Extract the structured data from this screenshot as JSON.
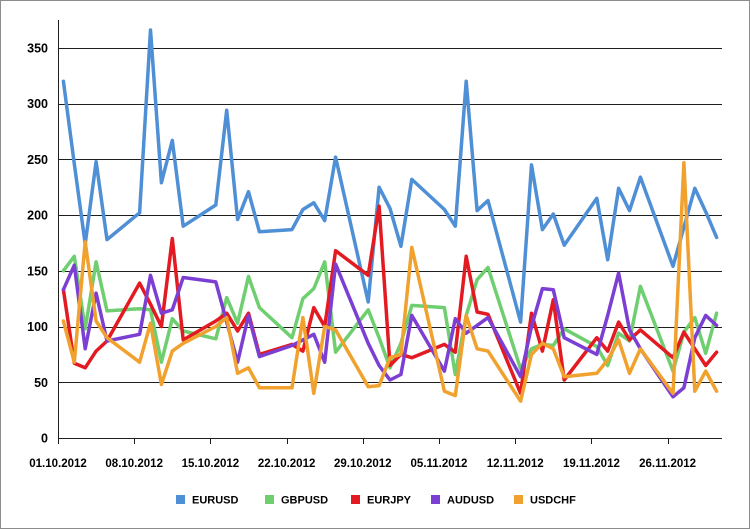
{
  "chart_data": {
    "type": "line",
    "x": [
      0,
      1,
      2,
      3,
      4,
      7,
      8,
      9,
      10,
      11,
      14,
      15,
      16,
      17,
      18,
      21,
      22,
      23,
      24,
      25,
      28,
      29,
      30,
      31,
      32,
      35,
      36,
      37,
      38,
      39,
      42,
      43,
      44,
      45,
      46,
      49,
      50,
      51,
      52,
      53,
      56,
      57,
      58,
      59,
      60
    ],
    "xlim": [
      0,
      61
    ],
    "xticks": [
      {
        "label": "01.10.2012",
        "day": 0
      },
      {
        "label": "08.10.2012",
        "day": 7
      },
      {
        "label": "15.10.2012",
        "day": 14
      },
      {
        "label": "22.10.2012",
        "day": 21
      },
      {
        "label": "29.10.2012",
        "day": 28
      },
      {
        "label": "05.11.2012",
        "day": 35
      },
      {
        "label": "12.11.2012",
        "day": 42
      },
      {
        "label": "19.11.2012",
        "day": 49
      },
      {
        "label": "26.11.2012",
        "day": 56
      }
    ],
    "ylim": [
      0,
      375
    ],
    "yticks": [
      0,
      50,
      100,
      150,
      200,
      250,
      300,
      350
    ],
    "grid": true,
    "legend": "bottom",
    "series": [
      {
        "name": "EURUSD",
        "color": "#4f8fd6",
        "values": [
          320,
          246,
          174,
          248,
          178,
          202,
          366,
          229,
          267,
          190,
          209,
          294,
          196,
          221,
          185,
          187,
          205,
          211,
          195,
          252,
          122,
          225,
          206,
          172,
          232,
          205,
          190,
          320,
          204,
          213,
          104,
          245,
          187,
          201,
          173,
          215,
          160,
          224,
          204,
          234,
          154,
          189,
          224,
          203,
          180
        ]
      },
      {
        "name": "GBPUSD",
        "color": "#6fcf70",
        "values": [
          150,
          163,
          98,
          158,
          114,
          116,
          115,
          68,
          107,
          96,
          89,
          126,
          103,
          145,
          117,
          90,
          125,
          134,
          158,
          77,
          115,
          90,
          63,
          85,
          119,
          117,
          57,
          110,
          142,
          153,
          62,
          80,
          84,
          83,
          98,
          82,
          65,
          94,
          87,
          136,
          60,
          95,
          108,
          76,
          112
        ]
      },
      {
        "name": "EURJPY",
        "color": "#e31a22",
        "values": [
          133,
          67,
          63,
          78,
          87,
          139,
          120,
          100,
          179,
          88,
          105,
          112,
          96,
          112,
          75,
          84,
          78,
          117,
          100,
          168,
          146,
          208,
          65,
          75,
          72,
          84,
          77,
          163,
          113,
          111,
          40,
          112,
          78,
          124,
          52,
          90,
          78,
          104,
          88,
          97,
          72,
          95,
          80,
          65,
          77
        ]
      },
      {
        "name": "AUDUSD",
        "color": "#7b3fd3",
        "values": [
          133,
          155,
          80,
          130,
          87,
          93,
          146,
          112,
          115,
          144,
          140,
          104,
          68,
          110,
          73,
          83,
          88,
          93,
          68,
          156,
          85,
          65,
          52,
          57,
          110,
          60,
          107,
          94,
          101,
          108,
          55,
          100,
          134,
          133,
          90,
          75,
          110,
          148,
          97,
          80,
          37,
          45,
          90,
          110,
          101
        ]
      },
      {
        "name": "USDCHF",
        "color": "#f0a12e",
        "values": [
          105,
          68,
          176,
          105,
          90,
          68,
          103,
          48,
          78,
          85,
          100,
          108,
          58,
          63,
          45,
          45,
          108,
          40,
          100,
          97,
          46,
          47,
          72,
          75,
          171,
          42,
          38,
          110,
          80,
          78,
          33,
          75,
          85,
          80,
          55,
          58,
          70,
          88,
          58,
          80,
          40,
          247,
          42,
          60,
          42
        ]
      }
    ]
  }
}
